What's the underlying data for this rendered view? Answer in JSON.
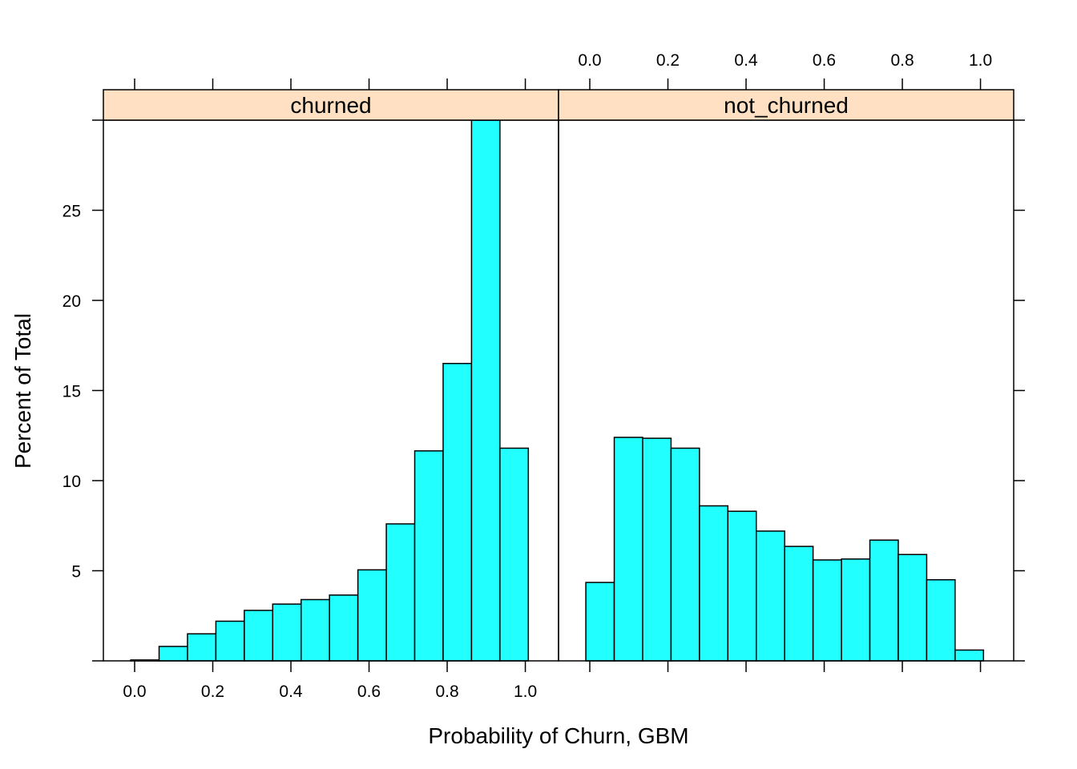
{
  "chart_data": {
    "type": "bar",
    "chart_kind": "histogram-lattice",
    "xlabel": "Probability of Churn, GBM",
    "ylabel": "Percent of Total",
    "xlim": [
      -0.08,
      1.085
    ],
    "ylim": [
      0,
      30
    ],
    "x_ticks": [
      "0.0",
      "0.2",
      "0.4",
      "0.6",
      "0.8",
      "1.0"
    ],
    "y_ticks": [
      "5",
      "10",
      "15",
      "20",
      "25"
    ],
    "bin_width": 0.0727,
    "grid": false,
    "bar_color": "#22ffff",
    "strip_color": "#ffe0c2",
    "panels": [
      {
        "name": "churned",
        "bins": [
          {
            "x0": -0.0101,
            "x1": 0.0626,
            "value": 0.05
          },
          {
            "x0": 0.0626,
            "x1": 0.1353,
            "value": 0.8
          },
          {
            "x0": 0.1353,
            "x1": 0.208,
            "value": 1.5
          },
          {
            "x0": 0.208,
            "x1": 0.2807,
            "value": 2.2
          },
          {
            "x0": 0.2807,
            "x1": 0.3534,
            "value": 2.8
          },
          {
            "x0": 0.3534,
            "x1": 0.4261,
            "value": 3.15
          },
          {
            "x0": 0.4261,
            "x1": 0.4988,
            "value": 3.4
          },
          {
            "x0": 0.4988,
            "x1": 0.5715,
            "value": 3.65
          },
          {
            "x0": 0.5715,
            "x1": 0.6442,
            "value": 5.05
          },
          {
            "x0": 0.6442,
            "x1": 0.7169,
            "value": 7.6
          },
          {
            "x0": 0.7169,
            "x1": 0.7896,
            "value": 11.65
          },
          {
            "x0": 0.7896,
            "x1": 0.8623,
            "value": 16.5
          },
          {
            "x0": 0.8623,
            "x1": 0.935,
            "value": 30.0
          },
          {
            "x0": 0.935,
            "x1": 1.0077,
            "value": 11.8
          }
        ]
      },
      {
        "name": "not_churned",
        "bins": [
          {
            "x0": -0.0101,
            "x1": 0.0626,
            "value": 4.35
          },
          {
            "x0": 0.0626,
            "x1": 0.1353,
            "value": 12.4
          },
          {
            "x0": 0.1353,
            "x1": 0.208,
            "value": 12.35
          },
          {
            "x0": 0.208,
            "x1": 0.2807,
            "value": 11.8
          },
          {
            "x0": 0.2807,
            "x1": 0.3534,
            "value": 8.6
          },
          {
            "x0": 0.3534,
            "x1": 0.4261,
            "value": 8.3
          },
          {
            "x0": 0.4261,
            "x1": 0.4988,
            "value": 7.2
          },
          {
            "x0": 0.4988,
            "x1": 0.5715,
            "value": 6.35
          },
          {
            "x0": 0.5715,
            "x1": 0.6442,
            "value": 5.6
          },
          {
            "x0": 0.6442,
            "x1": 0.7169,
            "value": 5.65
          },
          {
            "x0": 0.7169,
            "x1": 0.7896,
            "value": 6.7
          },
          {
            "x0": 0.7896,
            "x1": 0.8623,
            "value": 5.9
          },
          {
            "x0": 0.8623,
            "x1": 0.935,
            "value": 4.5
          },
          {
            "x0": 0.935,
            "x1": 1.0077,
            "value": 0.6
          }
        ]
      }
    ]
  }
}
